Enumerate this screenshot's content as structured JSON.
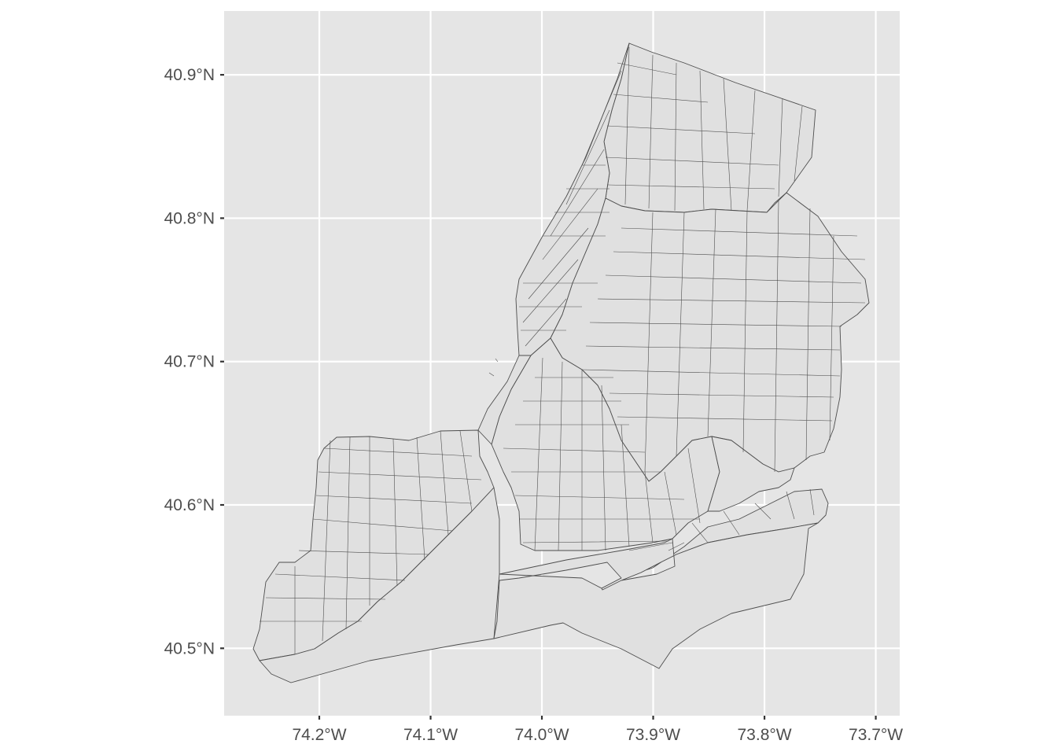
{
  "map": {
    "panel_color": "#e5e5e5",
    "tract_fill": "#e0e0e0",
    "tract_stroke": "#4d4d4d",
    "lon_range": [
      -74.2855,
      -73.6785
    ],
    "lat_range": [
      40.453,
      40.9445
    ],
    "x_axis": {
      "ticks": [
        {
          "value": -74.2,
          "label": "74.2°W"
        },
        {
          "value": -74.1,
          "label": "74.1°W"
        },
        {
          "value": -74.0,
          "label": "74.0°W"
        },
        {
          "value": -73.9,
          "label": "73.9°W"
        },
        {
          "value": -73.8,
          "label": "73.8°W"
        },
        {
          "value": -73.7,
          "label": "73.7°W"
        }
      ]
    },
    "y_axis": {
      "ticks": [
        {
          "value": 40.9,
          "label": "40.9°N"
        },
        {
          "value": 40.8,
          "label": "40.8°N"
        },
        {
          "value": 40.7,
          "label": "40.7°N"
        },
        {
          "value": 40.6,
          "label": "40.6°N"
        },
        {
          "value": 40.5,
          "label": "40.5°N"
        }
      ]
    }
  }
}
